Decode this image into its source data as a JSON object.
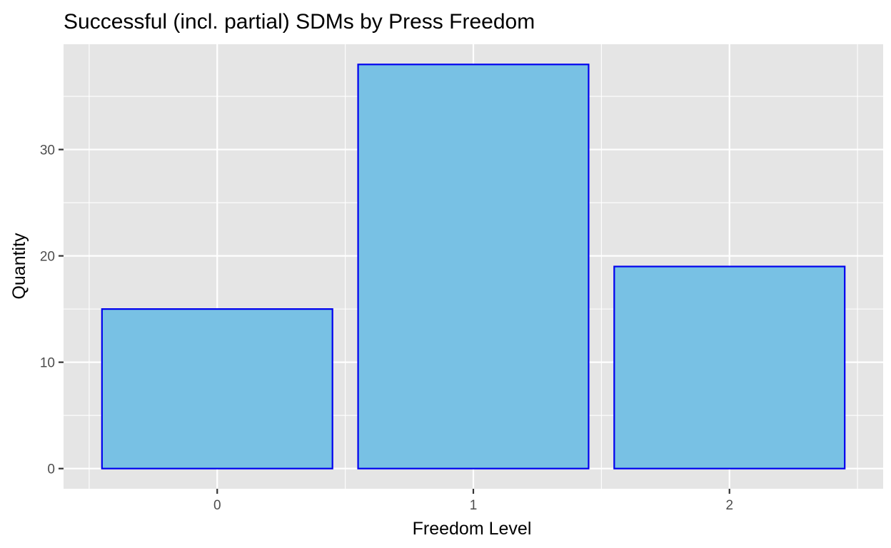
{
  "chart_data": {
    "type": "bar",
    "title": "Successful (incl. partial) SDMs by Press Freedom",
    "xlabel": "Freedom Level",
    "ylabel": "Quantity",
    "categories": [
      "0",
      "1",
      "2"
    ],
    "values": [
      15,
      38,
      19
    ],
    "ylim": [
      -1.9,
      39.9
    ],
    "yticks": [
      0,
      10,
      20,
      30
    ],
    "ytick_labels": [
      "0",
      "10",
      "20",
      "30"
    ],
    "grid": true,
    "colors": {
      "panel_background": "#e5e5e5",
      "grid": "#ffffff",
      "bar_fill": "#78c1e4",
      "bar_outline": "#0000ee"
    }
  }
}
